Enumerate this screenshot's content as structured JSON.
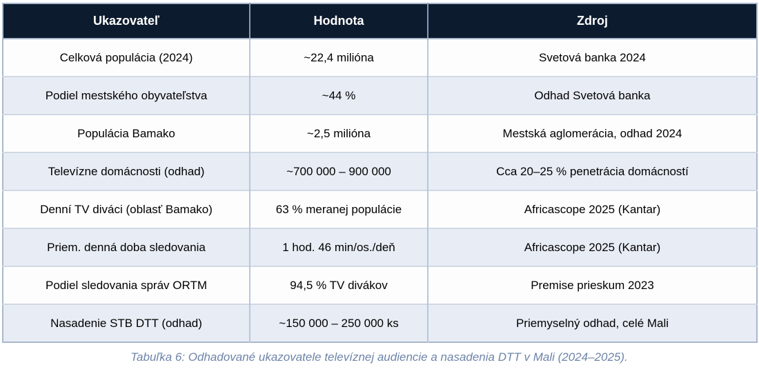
{
  "table": {
    "headers": [
      "Ukazovateľ",
      "Hodnota",
      "Zdroj"
    ],
    "rows": [
      [
        "Celková populácia (2024)",
        "~22,4 milióna",
        "Svetová banka 2024"
      ],
      [
        "Podiel mestského obyvateľstva",
        "~44 %",
        "Odhad Svetová banka"
      ],
      [
        "Populácia Bamako",
        "~2,5 milióna",
        "Mestská aglomerácia, odhad 2024"
      ],
      [
        "Televízne domácnosti (odhad)",
        "~700 000 – 900 000",
        "Cca 20–25 % penetrácia domácností"
      ],
      [
        "Denní TV diváci (oblasť Bamako)",
        "63 % meranej populácie",
        "Africascope 2025 (Kantar)"
      ],
      [
        "Priem. denná doba sledovania",
        "1 hod. 46 min/os./deň",
        "Africascope 2025 (Kantar)"
      ],
      [
        "Podiel sledovania správ ORTM",
        "94,5 % TV divákov",
        "Premise prieskum 2023"
      ],
      [
        "Nasadenie STB DTT (odhad)",
        "~150 000 – 250 000 ks",
        "Priemyselný odhad, celé Mali"
      ]
    ],
    "caption": "Tabuľka 6: Odhadované ukazovatele televíznej audiencie a nasadenia DTT v Mali (2024–2025)."
  },
  "colors": {
    "header_bg": "#0d1b2e",
    "header_text": "#ffffff",
    "row_bg": "#fdfdfe",
    "row_alt_bg": "#e8edf5",
    "border_outer": "#a9b7cc",
    "border_inner": "#b9c6da",
    "caption_text": "#6d84a8"
  }
}
